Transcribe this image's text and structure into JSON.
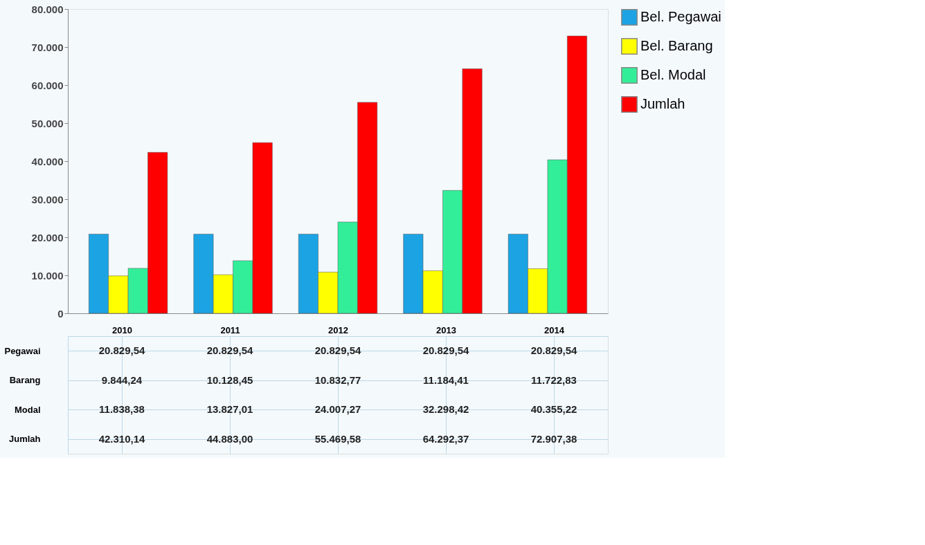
{
  "chart_data": {
    "type": "bar",
    "categories": [
      "2010",
      "2011",
      "2012",
      "2013",
      "2014"
    ],
    "series": [
      {
        "name": "Bel. Pegawai",
        "color": "#1ca3e3",
        "values": [
          20829.54,
          20829.54,
          20829.54,
          20829.54,
          20829.54
        ],
        "value_labels": [
          "20.829,54",
          "20.829,54",
          "20.829,54",
          "20.829,54",
          "20.829,54"
        ]
      },
      {
        "name": "Bel. Barang",
        "color": "#ffff00",
        "values": [
          9844.24,
          10128.45,
          10832.77,
          11184.41,
          11722.83
        ],
        "value_labels": [
          "9.844,24",
          "10.128,45",
          "10.832,77",
          "11.184,41",
          "11.722,83"
        ]
      },
      {
        "name": "Bel. Modal",
        "color": "#33ee99",
        "values": [
          11838.38,
          13827.01,
          24007.27,
          32298.42,
          40355.22
        ],
        "value_labels": [
          "11.838,38",
          "13.827,01",
          "24.007,27",
          "32.298,42",
          "40.355,22"
        ]
      },
      {
        "name": "Jumlah",
        "color": "#ff0000",
        "values": [
          42310.14,
          44883.0,
          55469.58,
          64292.37,
          72907.38
        ],
        "value_labels": [
          "42.310,14",
          "44.883,00",
          "55.469,58",
          "64.292,37",
          "72.907,38"
        ]
      }
    ],
    "annotations": [
      "Pegawai",
      "Barang",
      "Modal",
      "Jumlah"
    ],
    "ylim": [
      0,
      80000
    ],
    "yticks": [
      {
        "value": 0,
        "label": "0"
      },
      {
        "value": 10000,
        "label": "10.000"
      },
      {
        "value": 20000,
        "label": "20.000"
      },
      {
        "value": 30000,
        "label": "30.000"
      },
      {
        "value": 40000,
        "label": "40.000"
      },
      {
        "value": 50000,
        "label": "50.000"
      },
      {
        "value": 60000,
        "label": "60.000"
      },
      {
        "value": 70000,
        "label": "70.000"
      },
      {
        "value": 80000,
        "label": "80.000"
      }
    ],
    "tick_labels": "y",
    "grid": false,
    "legend": "top right"
  }
}
